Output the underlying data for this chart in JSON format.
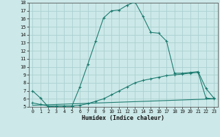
{
  "xlabel": "Humidex (Indice chaleur)",
  "bg_color": "#cce8e8",
  "grid_color": "#aacfcf",
  "line_color": "#1a7a6e",
  "xlim": [
    -0.5,
    23.5
  ],
  "ylim": [
    5,
    18
  ],
  "xticks": [
    0,
    1,
    2,
    3,
    4,
    5,
    6,
    7,
    8,
    9,
    10,
    11,
    12,
    13,
    14,
    15,
    16,
    17,
    18,
    19,
    20,
    21,
    22,
    23
  ],
  "yticks": [
    5,
    6,
    7,
    8,
    9,
    10,
    11,
    12,
    13,
    14,
    15,
    16,
    17,
    18
  ],
  "curve1_x": [
    0,
    1,
    2,
    3,
    4,
    5,
    6,
    7,
    8,
    9,
    10,
    11,
    12,
    13,
    14,
    15,
    16,
    17,
    18,
    19,
    20,
    21,
    22,
    23
  ],
  "curve1_y": [
    7.0,
    6.1,
    5.0,
    5.1,
    5.1,
    5.1,
    7.5,
    10.3,
    13.2,
    16.1,
    17.0,
    17.1,
    17.7,
    18.1,
    16.3,
    14.3,
    14.2,
    13.2,
    9.2,
    9.2,
    9.3,
    9.4,
    7.3,
    6.1
  ],
  "curve2_x": [
    0,
    1,
    2,
    3,
    4,
    5,
    6,
    7,
    8,
    9,
    10,
    11,
    12,
    13,
    14,
    15,
    16,
    17,
    18,
    19,
    20,
    21,
    22,
    23
  ],
  "curve2_y": [
    5.5,
    5.3,
    5.1,
    5.1,
    5.1,
    5.1,
    5.2,
    5.4,
    5.7,
    6.0,
    6.5,
    7.0,
    7.5,
    8.0,
    8.3,
    8.5,
    8.7,
    8.9,
    9.0,
    9.1,
    9.2,
    9.3,
    6.1,
    6.0
  ],
  "curve3_x": [
    0,
    23
  ],
  "curve3_y": [
    5.2,
    6.0
  ]
}
